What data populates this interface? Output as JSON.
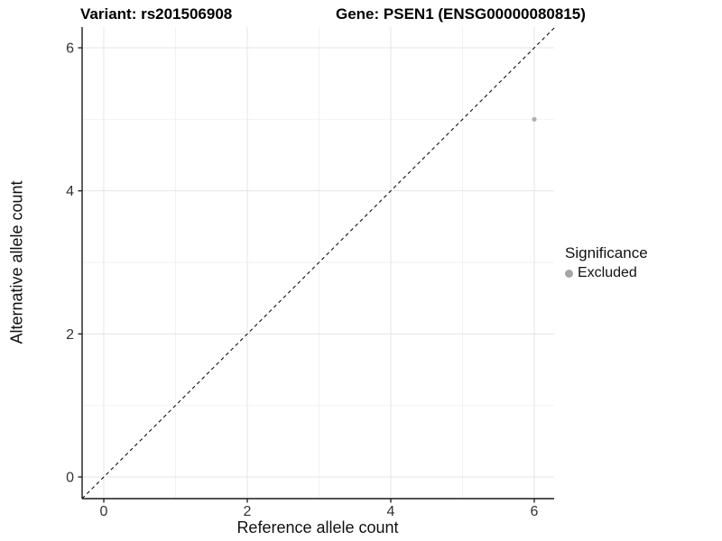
{
  "chart_data": {
    "type": "scatter",
    "title_left": "Variant: rs201506908",
    "title_right": "Gene: PSEN1 (ENSG00000080815)",
    "xlabel": "Reference allele count",
    "ylabel": "Alternative allele count",
    "xlim": [
      -0.3,
      6.3
    ],
    "ylim": [
      -0.3,
      6.3
    ],
    "x_ticks": [
      0,
      2,
      4,
      6
    ],
    "y_ticks": [
      0,
      2,
      4,
      6
    ],
    "x_minor_ticks": [
      1,
      3,
      5
    ],
    "y_minor_ticks": [
      1,
      3,
      5
    ],
    "grid": true,
    "reference_line": {
      "type": "identity",
      "slope": 1,
      "intercept": 0,
      "style": "dashed",
      "color": "#111111"
    },
    "series": [
      {
        "name": "Excluded",
        "color": "#b0b0b0",
        "points": [
          {
            "x": 6,
            "y": 5
          }
        ]
      }
    ],
    "legend": {
      "title": "Significance",
      "position": "right",
      "items": [
        {
          "label": "Excluded",
          "color": "#a6a6a6"
        }
      ]
    },
    "colors": {
      "background": "#ffffff",
      "axis_line": "#1a1a1a",
      "tick_label": "#333333",
      "grid_major": "#e4e4e4",
      "grid_minor": "#f1f1f1"
    }
  }
}
